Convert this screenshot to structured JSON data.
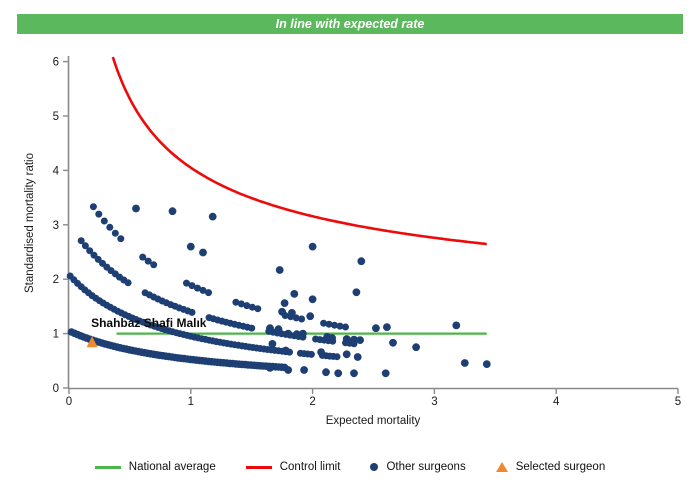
{
  "banner": {
    "text": "In line with expected rate",
    "bg_color": "#5cb85c",
    "text_color": "#ffffff"
  },
  "legend": {
    "items": [
      {
        "label": "National average",
        "swatch": "line",
        "color": "#4cb648"
      },
      {
        "label": "Control limit",
        "swatch": "line",
        "color": "#ee0a0a"
      },
      {
        "label": "Other surgeons",
        "swatch": "dot",
        "color": "#1e3f73"
      },
      {
        "label": "Selected surgeon",
        "swatch": "triangle",
        "color": "#f0892c"
      }
    ]
  },
  "chart_data": {
    "type": "scatter",
    "title": "In line with expected rate",
    "xlabel": "Expected mortality",
    "ylabel": "Standardised mortality ratio",
    "xlim": [
      0,
      5
    ],
    "ylim": [
      0,
      6
    ],
    "xticks": [
      0,
      1,
      2,
      3,
      4,
      5
    ],
    "yticks": [
      0,
      1,
      2,
      3,
      4,
      5,
      6
    ],
    "grid": false,
    "legend_position": "bottom",
    "colors": {
      "dots": "#1e3f73",
      "national_average": "#4cb648",
      "control_limit": "#ee0a0a",
      "selected": "#f0892c",
      "axis": "#8a8a8a",
      "tick_text": "#1a1a1a"
    },
    "national_average": {
      "value": 1.0,
      "x_from": 0.39,
      "x_to": 3.43
    },
    "control_limit": {
      "formula": "smr = offset + k / sqrt(expected)",
      "offset": 1.0,
      "k": 3.05,
      "x_from": 0.36,
      "x_to": 3.43
    },
    "selected_surgeon": {
      "name": "Shahbaz Shafi Malık",
      "x": 0.19,
      "y": 0.83
    },
    "surgeon_bands": [
      {
        "note": "smr = a/(x+b)",
        "a": 1.05,
        "b": 1.0,
        "from": 0.02,
        "to": 1.78,
        "step": 0.025,
        "r": 3.8,
        "gaps": []
      },
      {
        "note": "smr = a/(x+b)",
        "a": 1.75,
        "b": 0.84,
        "from": 0.01,
        "to": 2.2,
        "step": 0.03,
        "r": 3.5,
        "gaps": [
          [
            1.82,
            1.9
          ],
          [
            2.02,
            2.08
          ]
        ]
      },
      {
        "note": "smr = a/(x+b)",
        "a": 2.6,
        "b": 0.86,
        "from": 0.1,
        "to": 2.35,
        "step": 0.035,
        "r": 3.5,
        "gaps": [
          [
            0.52,
            0.62
          ],
          [
            1.02,
            1.12
          ],
          [
            1.52,
            1.62
          ],
          [
            1.92,
            2.02
          ],
          [
            2.18,
            2.24
          ]
        ]
      },
      {
        "note": "smr = a/(x+b)",
        "a": 3.5,
        "b": 0.85,
        "from": 0.2,
        "to": 2.3,
        "step": 0.045,
        "r": 3.5,
        "gaps": [
          [
            0.44,
            0.56
          ],
          [
            0.72,
            0.95
          ],
          [
            1.18,
            1.34
          ],
          [
            1.58,
            1.76
          ],
          [
            1.94,
            2.06
          ]
        ]
      }
    ],
    "scatter_points": [
      [
        0.55,
        3.3
      ],
      [
        0.85,
        3.25
      ],
      [
        1.18,
        3.15
      ],
      [
        1.0,
        2.6
      ],
      [
        1.1,
        2.49
      ],
      [
        2.0,
        2.6
      ],
      [
        2.4,
        2.33
      ],
      [
        1.73,
        2.17
      ],
      [
        1.85,
        1.73
      ],
      [
        2.36,
        1.76
      ],
      [
        2.0,
        1.63
      ],
      [
        1.77,
        1.56
      ],
      [
        1.75,
        1.4
      ],
      [
        1.83,
        1.38
      ],
      [
        1.98,
        1.32
      ],
      [
        1.65,
        1.1
      ],
      [
        1.72,
        1.08
      ],
      [
        2.52,
        1.1
      ],
      [
        2.61,
        1.12
      ],
      [
        3.18,
        1.15
      ],
      [
        1.8,
        1.0
      ],
      [
        1.87,
        0.99
      ],
      [
        1.92,
        1.0
      ],
      [
        2.12,
        0.94
      ],
      [
        2.16,
        0.92
      ],
      [
        2.28,
        0.9
      ],
      [
        2.34,
        0.89
      ],
      [
        2.39,
        0.88
      ],
      [
        1.67,
        0.81
      ],
      [
        1.78,
        0.69
      ],
      [
        2.07,
        0.66
      ],
      [
        2.28,
        0.62
      ],
      [
        2.37,
        0.57
      ],
      [
        2.66,
        0.83
      ],
      [
        2.85,
        0.75
      ],
      [
        1.65,
        0.37
      ],
      [
        1.8,
        0.33
      ],
      [
        1.93,
        0.33
      ],
      [
        2.11,
        0.29
      ],
      [
        2.21,
        0.27
      ],
      [
        2.34,
        0.27
      ],
      [
        2.6,
        0.27
      ],
      [
        3.25,
        0.46
      ],
      [
        3.43,
        0.44
      ]
    ]
  }
}
